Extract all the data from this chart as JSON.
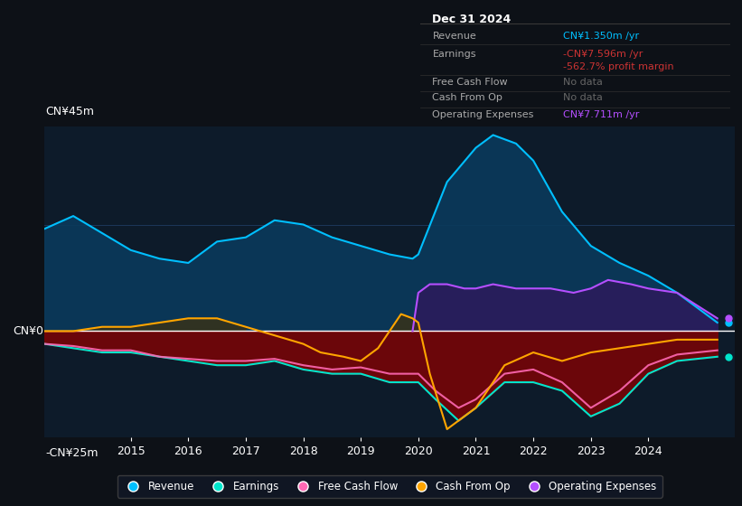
{
  "bg_color": "#0d1117",
  "plot_bg_color": "#0d1b2a",
  "grid_color": "#1e3a5f",
  "zero_line_color": "#ffffff",
  "ylim": [
    -25,
    48
  ],
  "ylabel_top": "CN¥45m",
  "ylabel_bottom": "-CN¥25m",
  "ylabel_zero": "CN¥0",
  "x_ticks": [
    2015,
    2016,
    2017,
    2018,
    2019,
    2020,
    2021,
    2022,
    2023,
    2024
  ],
  "xlim": [
    2013.5,
    2025.5
  ],
  "legend_items": [
    {
      "label": "Revenue",
      "color": "#00bfff"
    },
    {
      "label": "Earnings",
      "color": "#00e5cc"
    },
    {
      "label": "Free Cash Flow",
      "color": "#ff69b4"
    },
    {
      "label": "Cash From Op",
      "color": "#ffa500"
    },
    {
      "label": "Operating Expenses",
      "color": "#b44fff"
    }
  ],
  "tooltip": {
    "date": "Dec 31 2024",
    "rows": [
      {
        "label": "Revenue",
        "value": "CN¥1.350m /yr",
        "value_color": "#00bfff",
        "label_color": "#aaaaaa"
      },
      {
        "label": "Earnings",
        "value": "-CN¥7.596m /yr",
        "value_color": "#cc3333",
        "label_color": "#aaaaaa"
      },
      {
        "label": "",
        "value": "-562.7% profit margin",
        "value_color": "#cc3333",
        "label_color": "#aaaaaa"
      },
      {
        "label": "Free Cash Flow",
        "value": "No data",
        "value_color": "#666666",
        "label_color": "#aaaaaa"
      },
      {
        "label": "Cash From Op",
        "value": "No data",
        "value_color": "#666666",
        "label_color": "#aaaaaa"
      },
      {
        "label": "Operating Expenses",
        "value": "CN¥7.711m /yr",
        "value_color": "#b44fff",
        "label_color": "#aaaaaa"
      }
    ]
  },
  "revenue_x": [
    2013.5,
    2014.0,
    2014.5,
    2015.0,
    2015.5,
    2016.0,
    2016.5,
    2017.0,
    2017.5,
    2018.0,
    2018.5,
    2019.0,
    2019.5,
    2019.9,
    2020.0,
    2020.5,
    2021.0,
    2021.3,
    2021.7,
    2022.0,
    2022.5,
    2023.0,
    2023.5,
    2024.0,
    2024.5,
    2025.2
  ],
  "revenue_y": [
    24,
    27,
    23,
    19,
    17,
    16,
    21,
    22,
    26,
    25,
    22,
    20,
    18,
    17,
    18,
    35,
    43,
    46,
    44,
    40,
    28,
    20,
    16,
    13,
    9,
    2
  ],
  "revenue_color": "#00bfff",
  "revenue_fill": "#0a3a5c",
  "opex_x": [
    2019.9,
    2020.0,
    2020.2,
    2020.5,
    2020.8,
    2021.0,
    2021.3,
    2021.7,
    2022.0,
    2022.3,
    2022.7,
    2023.0,
    2023.3,
    2023.7,
    2024.0,
    2024.5,
    2025.2
  ],
  "opex_y": [
    0,
    9,
    11,
    11,
    10,
    10,
    11,
    10,
    10,
    10,
    9,
    10,
    12,
    11,
    10,
    9,
    3
  ],
  "opex_color": "#b44fff",
  "opex_fill": "#2d1a5c",
  "earnings_x": [
    2013.5,
    2014.0,
    2014.5,
    2015.0,
    2015.5,
    2016.0,
    2016.5,
    2017.0,
    2017.5,
    2018.0,
    2018.5,
    2019.0,
    2019.5,
    2020.0,
    2020.3,
    2020.7,
    2021.0,
    2021.5,
    2022.0,
    2022.5,
    2023.0,
    2023.5,
    2024.0,
    2024.5,
    2025.2
  ],
  "earnings_y": [
    -3,
    -4,
    -5,
    -5,
    -6,
    -7,
    -8,
    -8,
    -7,
    -9,
    -10,
    -10,
    -12,
    -12,
    -16,
    -21,
    -18,
    -12,
    -12,
    -14,
    -20,
    -17,
    -10,
    -7,
    -6
  ],
  "earnings_color": "#00e5cc",
  "earnings_fill": "#8b0000",
  "fcf_x": [
    2013.5,
    2014.0,
    2014.5,
    2015.0,
    2015.5,
    2016.0,
    2016.5,
    2017.0,
    2017.5,
    2018.0,
    2018.5,
    2019.0,
    2019.5,
    2020.0,
    2020.3,
    2020.7,
    2021.0,
    2021.5,
    2022.0,
    2022.5,
    2023.0,
    2023.5,
    2024.0,
    2024.5,
    2025.2
  ],
  "fcf_y": [
    -3,
    -3.5,
    -4.5,
    -4.5,
    -6,
    -6.5,
    -7,
    -7,
    -6.5,
    -8,
    -9,
    -8.5,
    -10,
    -10,
    -14,
    -18,
    -16,
    -10,
    -9,
    -12,
    -18,
    -14,
    -8,
    -5.5,
    -4.5
  ],
  "fcf_color": "#ff69b4",
  "cfo_x": [
    2013.5,
    2014.0,
    2014.5,
    2015.0,
    2015.5,
    2016.0,
    2016.5,
    2017.0,
    2017.5,
    2018.0,
    2018.3,
    2018.7,
    2019.0,
    2019.3,
    2019.5,
    2019.7,
    2019.9,
    2020.0,
    2020.2,
    2020.5,
    2021.0,
    2021.5,
    2022.0,
    2022.5,
    2023.0,
    2023.5,
    2024.0,
    2024.5,
    2025.2
  ],
  "cfo_y": [
    0,
    0,
    1,
    1,
    2,
    3,
    3,
    1,
    -1,
    -3,
    -5,
    -6,
    -7,
    -4,
    0,
    4,
    3,
    2,
    -10,
    -23,
    -18,
    -8,
    -5,
    -7,
    -5,
    -4,
    -3,
    -2,
    -2
  ],
  "cfo_color": "#ffa500",
  "cfo_fill": "#5a3000"
}
